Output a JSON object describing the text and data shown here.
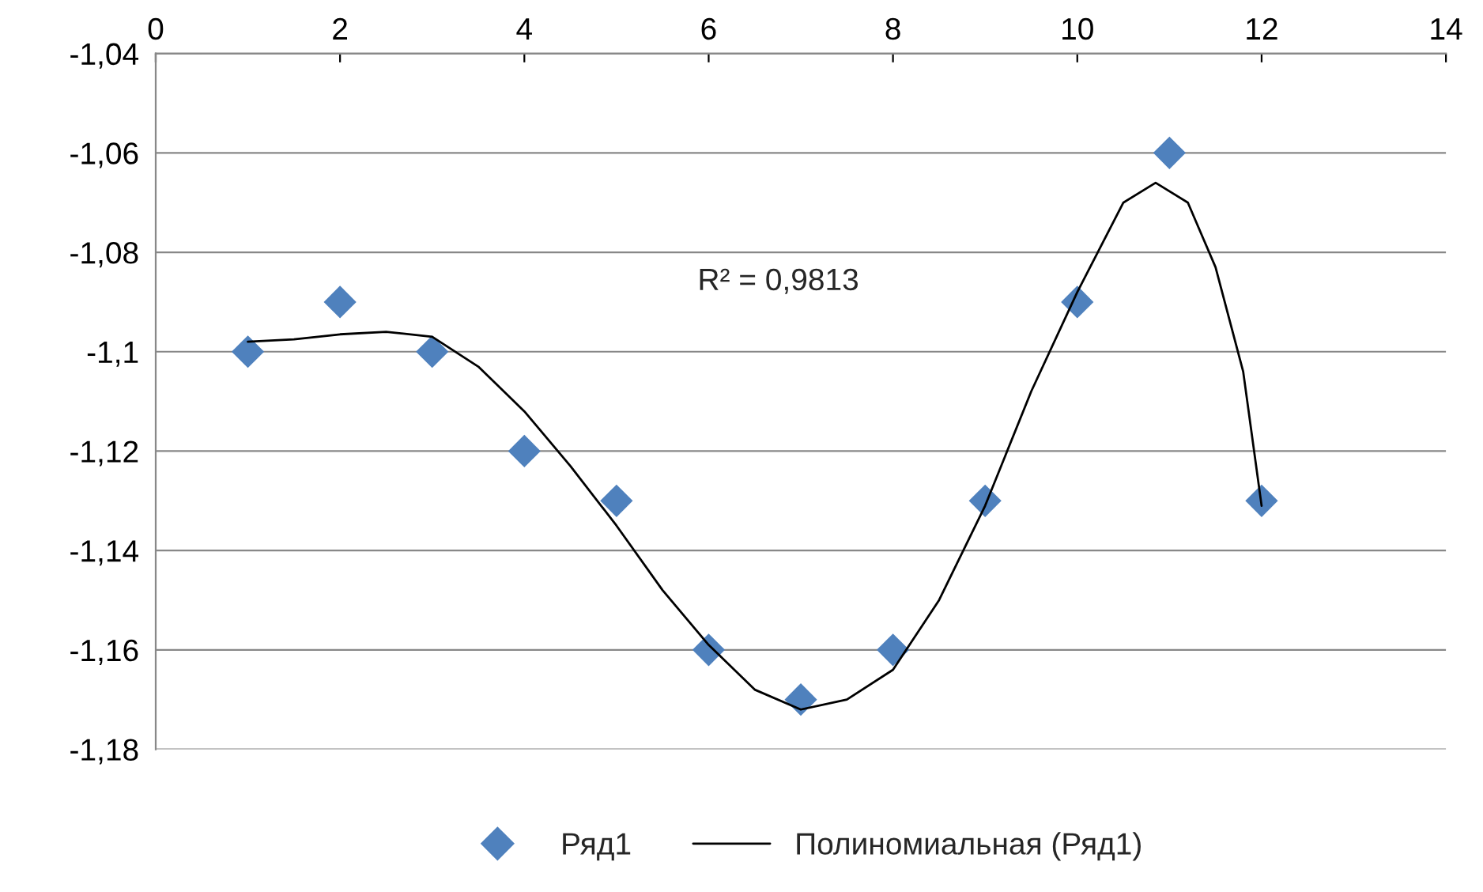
{
  "chart_data": {
    "type": "scatter",
    "annotations": [
      "R² = 0,9813"
    ],
    "series": [
      {
        "name": "Ряд1",
        "color": "#4f81bd",
        "marker": "diamond",
        "x": [
          1,
          2,
          3,
          4,
          5,
          6,
          7,
          8,
          9,
          10,
          11,
          12
        ],
        "values": [
          -1.1,
          -1.09,
          -1.1,
          -1.12,
          -1.13,
          -1.16,
          -1.17,
          -1.16,
          -1.13,
          -1.09,
          -1.06,
          -1.13
        ]
      },
      {
        "name": "Полиномиальная (Ряд1)",
        "type": "line",
        "color": "#000000",
        "line_style": "solid",
        "x": [
          1,
          1.5,
          2,
          2.5,
          3,
          3.5,
          4,
          4.5,
          5,
          5.5,
          6,
          6.5,
          7,
          7.5,
          8,
          8.5,
          9,
          9.5,
          10,
          10.5,
          10.85,
          11.2,
          11.5,
          11.8,
          12
        ],
        "values": [
          -1.098,
          -1.0975,
          -1.0965,
          -1.096,
          -1.097,
          -1.103,
          -1.112,
          -1.123,
          -1.135,
          -1.148,
          -1.159,
          -1.168,
          -1.172,
          -1.17,
          -1.164,
          -1.15,
          -1.131,
          -1.108,
          -1.088,
          -1.07,
          -1.066,
          -1.07,
          -1.083,
          -1.104,
          -1.131
        ]
      }
    ],
    "xlim": [
      0,
      14
    ],
    "xticks": [
      0,
      2,
      4,
      6,
      8,
      10,
      12,
      14
    ],
    "ylim": [
      -1.18,
      -1.04
    ],
    "yticks": [
      {
        "value": -1.18,
        "label": "-1,18"
      },
      {
        "value": -1.16,
        "label": "-1,16"
      },
      {
        "value": -1.14,
        "label": "-1,14"
      },
      {
        "value": -1.12,
        "label": "-1,12"
      },
      {
        "value": -1.1,
        "label": "-1,1"
      },
      {
        "value": -1.08,
        "label": "-1,08"
      },
      {
        "value": -1.06,
        "label": "-1,06"
      },
      {
        "value": -1.04,
        "label": "-1,04"
      }
    ],
    "grid": "y",
    "legend": "bottom"
  }
}
